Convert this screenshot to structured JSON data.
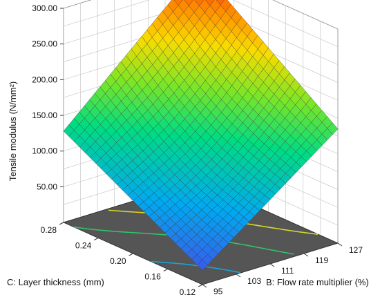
{
  "chart_data": {
    "type": "surface3d",
    "title": "",
    "zlabel": "Tensile modulus (N/mm²)",
    "xlabel": "B: Flow rate multiplier (%)",
    "ylabel": "C: Layer thickness (mm)",
    "x_ticks": [
      "95",
      "103",
      "111",
      "119",
      "127"
    ],
    "y_ticks": [
      "0.12",
      "0.16",
      "0.20",
      "0.24",
      "0.28"
    ],
    "z_ticks": [
      "50.00",
      "100.00",
      "150.00",
      "200.00",
      "250.00",
      "300.00"
    ],
    "xlim": [
      95,
      127
    ],
    "ylim": [
      0.12,
      0.28
    ],
    "zlim": [
      0,
      300
    ],
    "grid": true,
    "colormap": "rainbow (blue low → red high)",
    "floor_color": "#555555",
    "surface_corners": [
      {
        "x": 95,
        "y": 0.28,
        "z": 128
      },
      {
        "x": 127,
        "y": 0.28,
        "z": 300
      },
      {
        "x": 127,
        "y": 0.12,
        "z": 160
      },
      {
        "x": 95,
        "y": 0.12,
        "z": 20
      }
    ],
    "contours_on_floor": [
      {
        "z": 20,
        "color": "#1f2f9f"
      },
      {
        "z": 60,
        "color": "#1aa3d8"
      },
      {
        "z": 120,
        "color": "#2fc46a"
      },
      {
        "z": 180,
        "color": "#d7d62a"
      },
      {
        "z": 260,
        "color": "#e23b2b"
      }
    ]
  }
}
